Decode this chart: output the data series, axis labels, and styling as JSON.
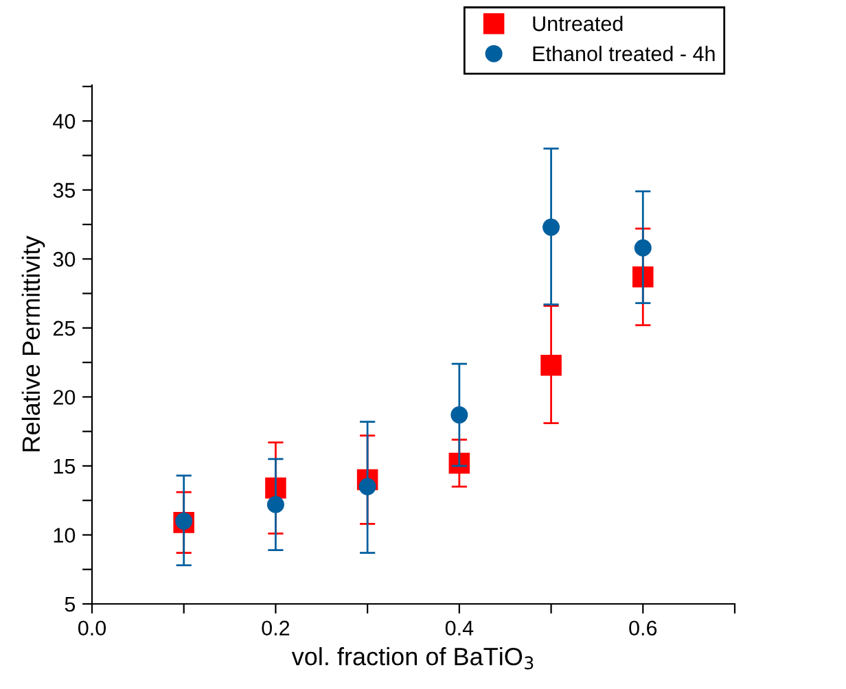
{
  "chart_data": {
    "type": "scatter",
    "xlabel": "vol. fraction of BaTiO$_{3}$",
    "ylabel": "Relative Permittivity",
    "x": [
      0.1,
      0.2,
      0.3,
      0.4,
      0.5,
      0.6
    ],
    "series": [
      {
        "name": "Untreated",
        "color": "#ff0000",
        "marker": "square",
        "values": [
          10.9,
          13.4,
          14.0,
          15.2,
          22.3,
          28.7
        ],
        "errors": [
          [
            8.7,
            13.1
          ],
          [
            10.1,
            16.7
          ],
          [
            10.8,
            17.2
          ],
          [
            13.5,
            16.9
          ],
          [
            18.1,
            26.6
          ],
          [
            25.2,
            32.2
          ]
        ]
      },
      {
        "name": "Ethanol treated - 4h",
        "color": "#005f9e",
        "marker": "circle",
        "values": [
          11.0,
          12.2,
          13.5,
          18.7,
          32.3,
          30.8
        ],
        "errors": [
          [
            7.8,
            14.3
          ],
          [
            8.9,
            15.5
          ],
          [
            8.7,
            18.2
          ],
          [
            15.0,
            22.4
          ],
          [
            26.7,
            38.0
          ],
          [
            26.8,
            34.9
          ]
        ]
      }
    ],
    "xlim": [
      0.0,
      0.7
    ],
    "xticks": [
      {
        "value": 0,
        "label": "0.0"
      },
      {
        "value": 0.1,
        "label": null
      },
      0.2,
      {
        "value": 0.3,
        "label": null
      },
      0.4,
      {
        "value": 0.5,
        "label": null
      },
      0.6,
      {
        "value": 0.7,
        "label": null
      }
    ],
    "ylim": [
      5,
      42.6
    ],
    "yticks": [
      5,
      {
        "value": 7.5,
        "label": null
      },
      10,
      {
        "value": 12.5,
        "label": null
      },
      15,
      {
        "value": 17.5,
        "label": null
      },
      20,
      {
        "value": 22.5,
        "label": null
      },
      25,
      {
        "value": 27.5,
        "label": null
      },
      30,
      {
        "value": 32.5,
        "label": null
      },
      35,
      {
        "value": 37.5,
        "label": null
      },
      40,
      {
        "value": 42.5,
        "label": null
      }
    ],
    "grid": false,
    "legend": "top right"
  }
}
